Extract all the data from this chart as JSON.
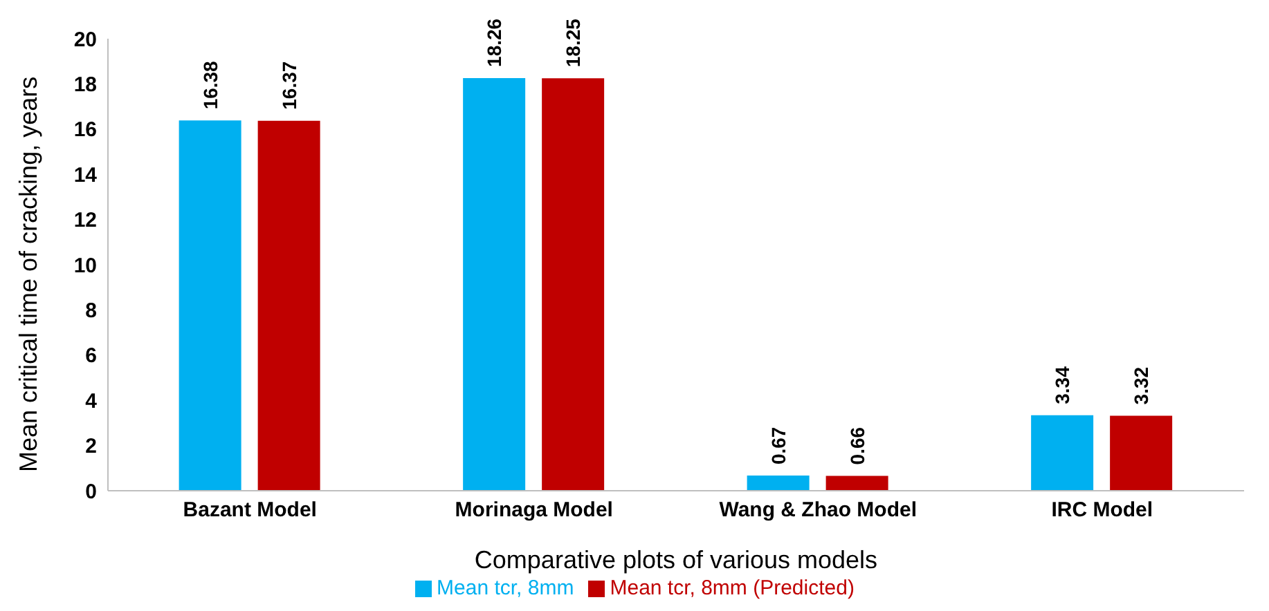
{
  "chart_data": {
    "type": "bar",
    "xlabel": "Comparative plots of various models",
    "ylabel": "Mean critical time of cracking, years",
    "categories": [
      "Bazant Model",
      "Morinaga Model",
      "Wang & Zhao Model",
      "IRC Model"
    ],
    "series": [
      {
        "name": "Mean tcr, 8mm",
        "color": "#00b0f0",
        "values": [
          16.38,
          18.26,
          0.67,
          3.34
        ]
      },
      {
        "name": "Mean tcr, 8mm (Predicted)",
        "color": "#c00000",
        "values": [
          16.37,
          18.25,
          0.66,
          3.32
        ]
      }
    ],
    "ylim": [
      0,
      20
    ],
    "yticks": [
      0,
      2,
      4,
      6,
      8,
      10,
      12,
      14,
      16,
      18,
      20
    ],
    "grid": false,
    "data_labels": true,
    "legend": "bottom"
  }
}
